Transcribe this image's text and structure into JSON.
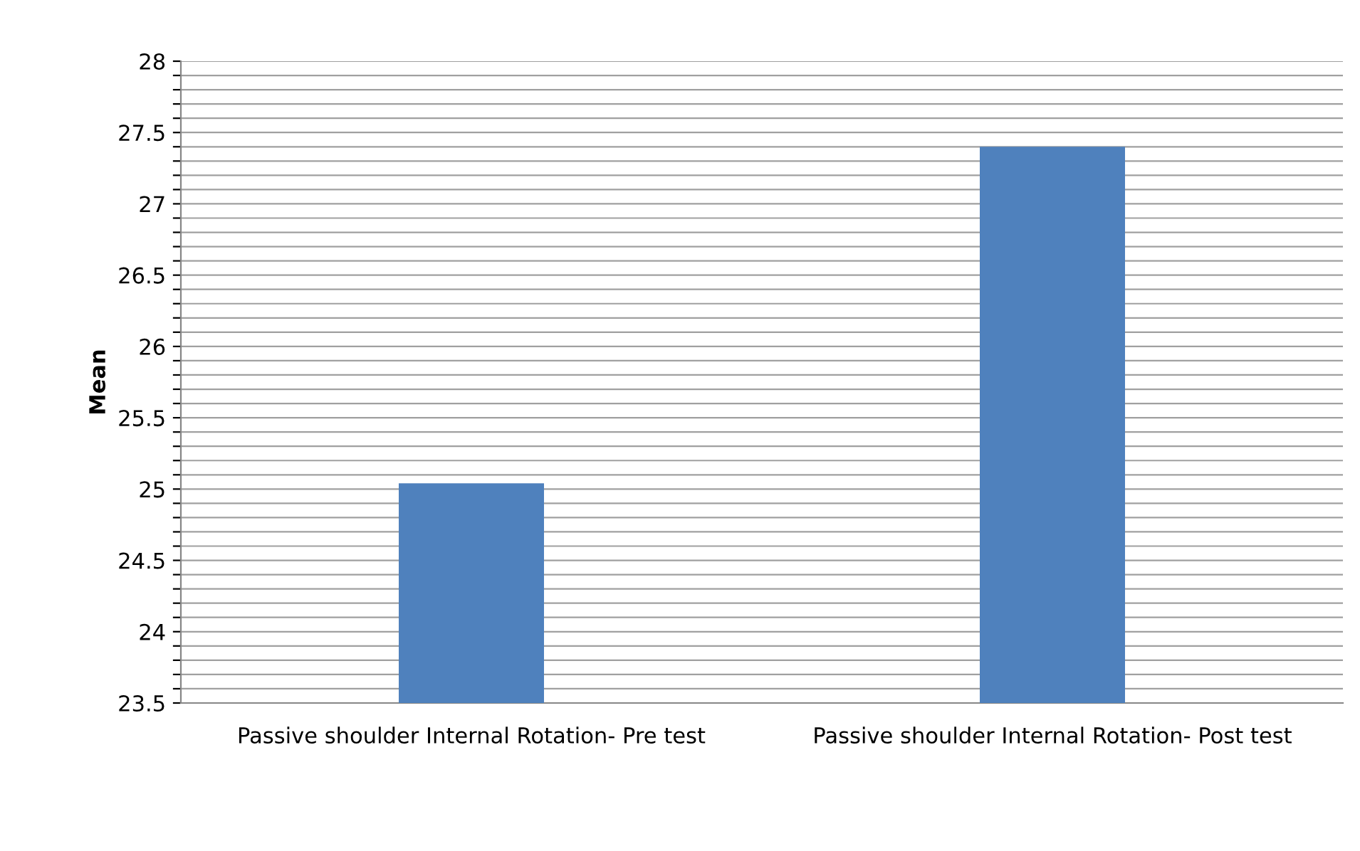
{
  "chart_data": {
    "type": "bar",
    "ylabel": "Mean",
    "categories": [
      "Passive shoulder Internal Rotation- Pre test",
      "Passive shoulder Internal Rotation- Post test"
    ],
    "values": [
      25.04,
      27.4
    ],
    "color": "#4f81bd",
    "ylim": [
      23.5,
      28
    ],
    "yticks": [
      23.5,
      {
        "value": 23.6,
        "label": null
      },
      {
        "value": 23.7,
        "label": null
      },
      {
        "value": 23.8,
        "label": null
      },
      {
        "value": 23.9,
        "label": null
      },
      24,
      {
        "value": 24.1,
        "label": null
      },
      {
        "value": 24.2,
        "label": null
      },
      {
        "value": 24.3,
        "label": null
      },
      {
        "value": 24.4,
        "label": null
      },
      24.5,
      {
        "value": 24.6,
        "label": null
      },
      {
        "value": 24.7,
        "label": null
      },
      {
        "value": 24.8,
        "label": null
      },
      {
        "value": 24.9,
        "label": null
      },
      25,
      {
        "value": 25.1,
        "label": null
      },
      {
        "value": 25.2,
        "label": null
      },
      {
        "value": 25.3,
        "label": null
      },
      {
        "value": 25.4,
        "label": null
      },
      25.5,
      {
        "value": 25.6,
        "label": null
      },
      {
        "value": 25.7,
        "label": null
      },
      {
        "value": 25.8,
        "label": null
      },
      {
        "value": 25.9,
        "label": null
      },
      26,
      {
        "value": 26.1,
        "label": null
      },
      {
        "value": 26.2,
        "label": null
      },
      {
        "value": 26.3,
        "label": null
      },
      {
        "value": 26.4,
        "label": null
      },
      26.5,
      {
        "value": 26.6,
        "label": null
      },
      {
        "value": 26.7,
        "label": null
      },
      {
        "value": 26.8,
        "label": null
      },
      {
        "value": 26.9,
        "label": null
      },
      27,
      {
        "value": 27.1,
        "label": null
      },
      {
        "value": 27.2,
        "label": null
      },
      {
        "value": 27.3,
        "label": null
      },
      {
        "value": 27.4,
        "label": null
      },
      27.5,
      {
        "value": 27.6,
        "label": null
      },
      {
        "value": 27.7,
        "label": null
      },
      {
        "value": 27.8,
        "label": null
      },
      {
        "value": 27.9,
        "label": null
      },
      28
    ],
    "grid": "y"
  }
}
